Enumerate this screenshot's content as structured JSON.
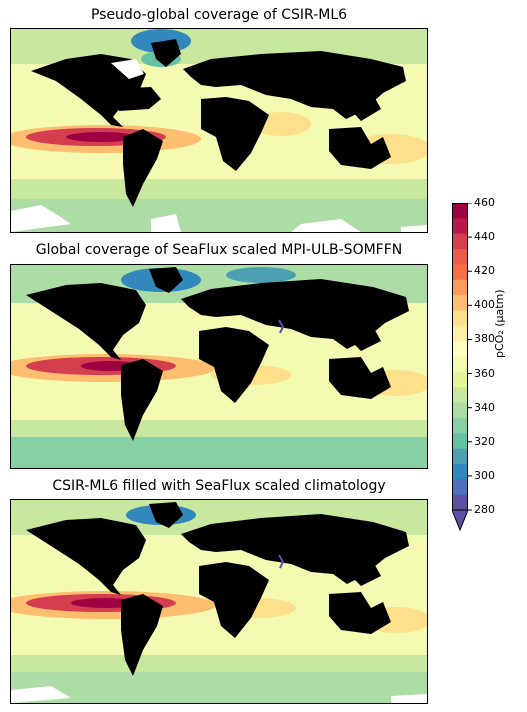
{
  "panels": [
    {
      "title": "Pseudo-global coverage of CSIR-ML6"
    },
    {
      "title": "Global coverage of SeaFlux scaled MPI-ULB-SOMFFN"
    },
    {
      "title": "CSIR-ML6 filled with SeaFlux scaled climatology"
    }
  ],
  "colorbar": {
    "label": "pCO₂ (µatm)",
    "ticks": [
      "460",
      "440",
      "420",
      "400",
      "380",
      "360",
      "340",
      "320",
      "300",
      "280"
    ],
    "min": 280,
    "max": 460,
    "extend": "min",
    "colors": [
      "#9e0142",
      "#b8184a",
      "#d53e4f",
      "#e95c47",
      "#f46d43",
      "#fb9d59",
      "#fdbe6f",
      "#fee08b",
      "#fff0a6",
      "#ffffbf",
      "#f4fab0",
      "#e6f598",
      "#c7e89e",
      "#abdda4",
      "#87cfa4",
      "#66c2a5",
      "#4ca0b1",
      "#3288bd",
      "#4a6fbd",
      "#5e4fa2"
    ]
  },
  "colors": {
    "land": "#000000",
    "background_ocean": "#f4fab2",
    "equatorial_pacific_high": "#b31b4b",
    "arctic_low": "#3b86bd",
    "southern_ocean": "#c7e89e"
  }
}
